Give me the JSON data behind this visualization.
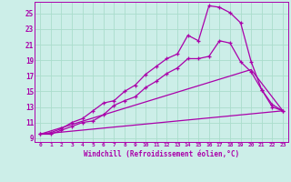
{
  "xlabel": "Windchill (Refroidissement éolien,°C)",
  "bg_color": "#cceee8",
  "grid_color": "#aaddcc",
  "line_color": "#aa00aa",
  "xlim": [
    -0.5,
    23.5
  ],
  "ylim": [
    8.5,
    26.5
  ],
  "yticks": [
    9,
    11,
    13,
    15,
    17,
    19,
    21,
    23,
    25
  ],
  "xticks": [
    0,
    1,
    2,
    3,
    4,
    5,
    6,
    7,
    8,
    9,
    10,
    11,
    12,
    13,
    14,
    15,
    16,
    17,
    18,
    19,
    20,
    21,
    22,
    23
  ],
  "curve1_x": [
    0,
    1,
    2,
    3,
    4,
    5,
    6,
    7,
    8,
    9,
    10,
    11,
    12,
    13,
    14,
    15,
    16,
    17,
    18,
    19,
    20,
    21,
    22,
    23
  ],
  "curve1_y": [
    9.5,
    9.7,
    10.2,
    11.0,
    11.5,
    12.5,
    13.5,
    13.8,
    15.0,
    15.8,
    17.2,
    18.2,
    19.2,
    19.8,
    22.2,
    21.5,
    26.0,
    25.8,
    25.1,
    23.8,
    18.8,
    15.2,
    13.0,
    12.5
  ],
  "curve2_x": [
    0,
    1,
    2,
    3,
    4,
    5,
    6,
    7,
    8,
    9,
    10,
    11,
    12,
    13,
    14,
    15,
    16,
    17,
    18,
    19,
    20,
    21,
    22,
    23
  ],
  "curve2_y": [
    9.5,
    9.5,
    10.0,
    10.5,
    11.0,
    11.2,
    12.0,
    13.2,
    13.8,
    14.3,
    15.5,
    16.3,
    17.3,
    18.0,
    19.2,
    19.2,
    19.5,
    21.5,
    21.2,
    18.8,
    17.5,
    15.2,
    13.3,
    12.5
  ],
  "line1_x": [
    0,
    23
  ],
  "line1_y": [
    9.5,
    12.5
  ],
  "line2_x": [
    0,
    20,
    23
  ],
  "line2_y": [
    9.5,
    17.8,
    12.5
  ]
}
